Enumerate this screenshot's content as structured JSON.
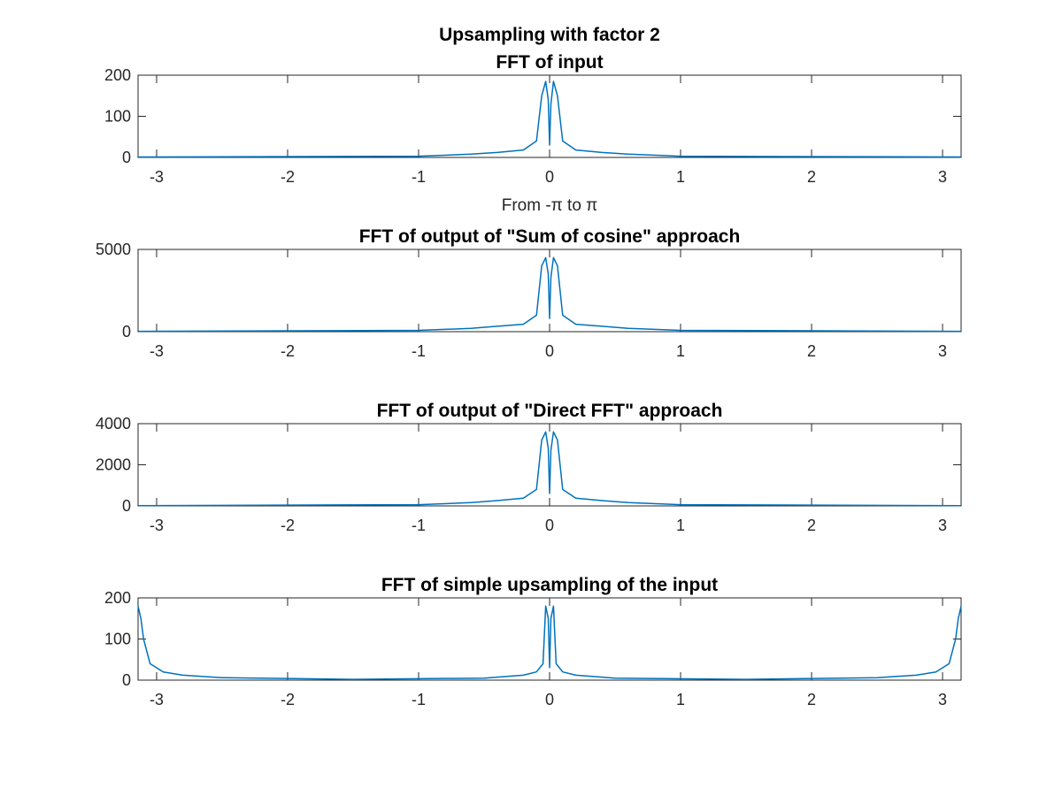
{
  "figure_title": "Upsampling with factor 2",
  "colors": {
    "series": "#0072BD",
    "axes": "#262626",
    "background": "#ffffff"
  },
  "chart_data": [
    {
      "type": "line",
      "title": "FFT of input",
      "xlabel": "From -π to π",
      "ylabel": "",
      "xlim": [
        -3.1416,
        3.1416
      ],
      "ylim": [
        0,
        200
      ],
      "xticks": [
        -3,
        -2,
        -1,
        0,
        1,
        2,
        3
      ],
      "xtick_labels": [
        "-3",
        "-2",
        "-1",
        "0",
        "1",
        "2",
        "3"
      ],
      "yticks": [
        0,
        100,
        200
      ],
      "ytick_labels": [
        "0",
        "100",
        "200"
      ],
      "grid": false,
      "series": [
        {
          "x": [
            -3.14,
            -1.0,
            -0.6,
            -0.4,
            -0.2,
            -0.1,
            -0.06,
            -0.03,
            -0.01,
            0.0,
            0.01,
            0.03,
            0.06,
            0.1,
            0.2,
            0.4,
            0.6,
            1.0,
            3.14
          ],
          "y": [
            1,
            3,
            8,
            12,
            18,
            40,
            150,
            185,
            140,
            30,
            130,
            185,
            150,
            40,
            18,
            12,
            8,
            3,
            1
          ]
        }
      ]
    },
    {
      "type": "line",
      "title": "FFT of output of \"Sum of cosine\" approach",
      "xlabel": "",
      "ylabel": "",
      "xlim": [
        -3.1416,
        3.1416
      ],
      "ylim": [
        0,
        5000
      ],
      "xticks": [
        -3,
        -2,
        -1,
        0,
        1,
        2,
        3
      ],
      "xtick_labels": [
        "-3",
        "-2",
        "-1",
        "0",
        "1",
        "2",
        "3"
      ],
      "yticks": [
        0,
        5000
      ],
      "ytick_labels": [
        "0",
        "5000"
      ],
      "grid": false,
      "series": [
        {
          "x": [
            -3.14,
            -1.0,
            -0.6,
            -0.4,
            -0.2,
            -0.1,
            -0.06,
            -0.03,
            -0.01,
            0.0,
            0.01,
            0.03,
            0.06,
            0.1,
            0.2,
            0.4,
            0.6,
            1.0,
            3.14
          ],
          "y": [
            20,
            80,
            200,
            330,
            450,
            1000,
            4000,
            4500,
            3500,
            800,
            3300,
            4500,
            4000,
            1000,
            450,
            330,
            200,
            80,
            20
          ]
        }
      ]
    },
    {
      "type": "line",
      "title": "FFT of output of \"Direct FFT\" approach",
      "xlabel": "",
      "ylabel": "",
      "xlim": [
        -3.1416,
        3.1416
      ],
      "ylim": [
        0,
        4000
      ],
      "xticks": [
        -3,
        -2,
        -1,
        0,
        1,
        2,
        3
      ],
      "xtick_labels": [
        "-3",
        "-2",
        "-1",
        "0",
        "1",
        "2",
        "3"
      ],
      "yticks": [
        0,
        2000,
        4000
      ],
      "ytick_labels": [
        "0",
        "2000",
        "4000"
      ],
      "grid": false,
      "series": [
        {
          "x": [
            -3.14,
            -1.0,
            -0.6,
            -0.4,
            -0.2,
            -0.1,
            -0.06,
            -0.03,
            -0.01,
            0.0,
            0.01,
            0.03,
            0.06,
            0.1,
            0.2,
            0.4,
            0.6,
            1.0,
            3.14
          ],
          "y": [
            15,
            60,
            160,
            260,
            380,
            800,
            3200,
            3600,
            2800,
            600,
            2700,
            3600,
            3200,
            800,
            380,
            260,
            160,
            60,
            15
          ]
        }
      ]
    },
    {
      "type": "line",
      "title": "FFT of simple upsampling of the input",
      "xlabel": "",
      "ylabel": "",
      "xlim": [
        -3.1416,
        3.1416
      ],
      "ylim": [
        0,
        200
      ],
      "xticks": [
        -3,
        -2,
        -1,
        0,
        1,
        2,
        3
      ],
      "xtick_labels": [
        "-3",
        "-2",
        "-1",
        "0",
        "1",
        "2",
        "3"
      ],
      "yticks": [
        0,
        100,
        200
      ],
      "ytick_labels": [
        "0",
        "100",
        "200"
      ],
      "grid": false,
      "series": [
        {
          "x": [
            -3.1416,
            -3.12,
            -3.1,
            -3.05,
            -2.95,
            -2.8,
            -2.5,
            -1.5,
            -0.5,
            -0.2,
            -0.1,
            -0.05,
            -0.03,
            -0.01,
            0.0,
            0.01,
            0.03,
            0.05,
            0.1,
            0.2,
            0.5,
            1.5,
            2.5,
            2.8,
            2.95,
            3.05,
            3.1,
            3.12,
            3.1416
          ],
          "y": [
            180,
            150,
            100,
            40,
            20,
            12,
            6,
            2,
            5,
            12,
            20,
            40,
            180,
            150,
            30,
            150,
            180,
            40,
            20,
            12,
            5,
            2,
            6,
            12,
            20,
            40,
            100,
            150,
            180
          ]
        }
      ]
    }
  ]
}
